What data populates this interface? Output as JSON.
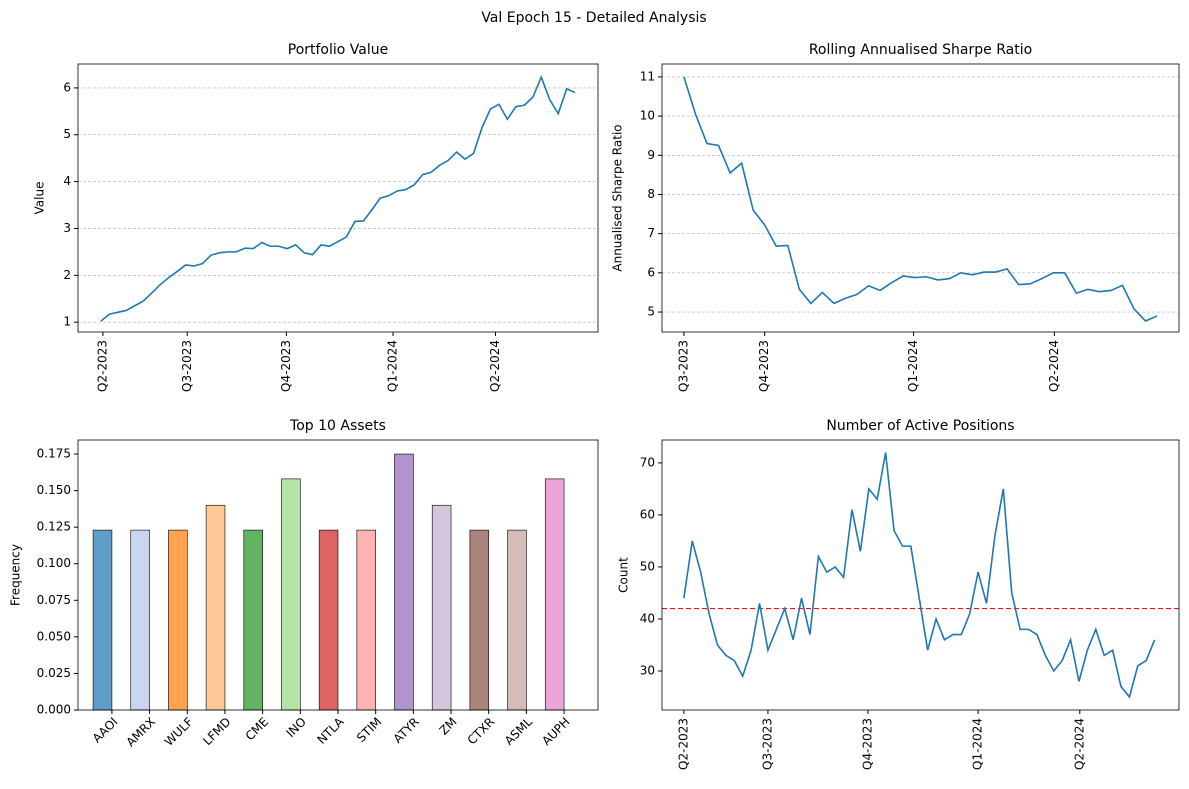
{
  "title": "Val Epoch 15 - Detailed Analysis",
  "chart_data": [
    {
      "type": "line",
      "title": "Portfolio Value",
      "ylabel": "Value",
      "color": "#1f77b4",
      "grid": true,
      "values": [
        1.02,
        1.17,
        1.21,
        1.25,
        1.35,
        1.45,
        1.62,
        1.8,
        1.95,
        2.08,
        2.22,
        2.2,
        2.25,
        2.43,
        2.48,
        2.5,
        2.5,
        2.58,
        2.57,
        2.7,
        2.62,
        2.62,
        2.57,
        2.65,
        2.48,
        2.44,
        2.65,
        2.62,
        2.72,
        2.82,
        3.15,
        3.16,
        3.4,
        3.65,
        3.7,
        3.8,
        3.83,
        3.93,
        4.15,
        4.2,
        4.35,
        4.45,
        4.63,
        4.48,
        4.6,
        5.15,
        5.55,
        5.65,
        5.33,
        5.6,
        5.63,
        5.8,
        6.23,
        5.75,
        5.45,
        5.98,
        5.9
      ],
      "xlim": [
        -2.7,
        58.7
      ],
      "xticks": [
        {
          "value": 0.24,
          "label": "Q2-2023"
        },
        {
          "value": 10.2,
          "label": "Q3-2023"
        },
        {
          "value": 21.9,
          "label": "Q4-2023"
        },
        {
          "value": 34.5,
          "label": "Q1-2024"
        },
        {
          "value": 46.6,
          "label": "Q2-2024"
        }
      ],
      "ylim": [
        0.79,
        6.51
      ],
      "yticks": [
        1,
        2,
        3,
        4,
        5,
        6
      ]
    },
    {
      "type": "line",
      "title": "Rolling Annualised Sharpe Ratio",
      "ylabel": "Annualised Sharpe Ratio",
      "color": "#1f77b4",
      "grid": true,
      "values": [
        11.0,
        10.05,
        9.3,
        9.25,
        8.55,
        8.8,
        7.6,
        7.22,
        6.68,
        6.7,
        5.58,
        5.22,
        5.5,
        5.22,
        5.35,
        5.45,
        5.67,
        5.55,
        5.75,
        5.92,
        5.88,
        5.9,
        5.82,
        5.85,
        6.0,
        5.95,
        6.02,
        6.02,
        6.1,
        5.7,
        5.72,
        5.85,
        6.0,
        6.0,
        5.48,
        5.58,
        5.52,
        5.55,
        5.68,
        5.08,
        4.77,
        4.9
      ],
      "xlim": [
        -1.9,
        42.9
      ],
      "xticks": [
        {
          "value": 0,
          "label": "Q3-2023"
        },
        {
          "value": 7.0,
          "label": "Q4-2023"
        },
        {
          "value": 19.9,
          "label": "Q1-2024"
        },
        {
          "value": 32.1,
          "label": "Q2-2024"
        }
      ],
      "ylim": [
        4.49,
        11.33
      ],
      "yticks": [
        5,
        6,
        7,
        8,
        9,
        10,
        11
      ]
    },
    {
      "type": "bar",
      "title": "Top 10 Assets",
      "ylabel": "Frequency",
      "grid": false,
      "categories": [
        "AAOI",
        "AMRX",
        "WULF",
        "LFMD",
        "CME",
        "INO",
        "NTLA",
        "STIM",
        "ATYR",
        "ZM",
        "CTXR",
        "ASML",
        "AUPH"
      ],
      "values": [
        0.123,
        0.123,
        0.123,
        0.14,
        0.123,
        0.158,
        0.123,
        0.123,
        0.175,
        0.14,
        0.123,
        0.123,
        0.158
      ],
      "colors": [
        "#5f9ec9",
        "#c8d7ee",
        "#ffa351",
        "#ffc897",
        "#63b363",
        "#b4e5a6",
        "#e06363",
        "#ffb3b3",
        "#b093cf",
        "#d3c6dd",
        "#a9847d",
        "#d6bcb6",
        "#eca3d7"
      ],
      "ylim": [
        0,
        0.1846
      ],
      "yticks": [
        {
          "value": 0,
          "label": "0.000"
        },
        {
          "value": 0.025,
          "label": "0.025"
        },
        {
          "value": 0.05,
          "label": "0.050"
        },
        {
          "value": 0.075,
          "label": "0.075"
        },
        {
          "value": 0.1,
          "label": "0.100"
        },
        {
          "value": 0.125,
          "label": "0.125"
        },
        {
          "value": 0.15,
          "label": "0.150"
        },
        {
          "value": 0.175,
          "label": "0.175"
        }
      ]
    },
    {
      "type": "line",
      "title": "Number of Active Positions",
      "ylabel": "Count",
      "color": "#1f77b4",
      "grid": false,
      "values": [
        44,
        55,
        49,
        41,
        35,
        33,
        32,
        29,
        34,
        43,
        34,
        38,
        42,
        36,
        44,
        37,
        52,
        49,
        50,
        48,
        61,
        53,
        65,
        63,
        72,
        57,
        54,
        54,
        44,
        34,
        40,
        36,
        37,
        37,
        41,
        49,
        43,
        56,
        65,
        45,
        38,
        38,
        37,
        33,
        30,
        32,
        36,
        28,
        34,
        38,
        33,
        34,
        27,
        25,
        31,
        32,
        36
      ],
      "hline": 42,
      "hline_color": "#e31a1c",
      "xlim": [
        -2.6,
        58.9
      ],
      "xticks": [
        {
          "value": 0,
          "label": "Q2-2023"
        },
        {
          "value": 10.0,
          "label": "Q3-2023"
        },
        {
          "value": 21.9,
          "label": "Q4-2023"
        },
        {
          "value": 35.0,
          "label": "Q1-2024"
        },
        {
          "value": 47.1,
          "label": "Q2-2024"
        }
      ],
      "ylim": [
        22.5,
        74.4
      ],
      "yticks": [
        30,
        40,
        50,
        60,
        70
      ]
    }
  ]
}
